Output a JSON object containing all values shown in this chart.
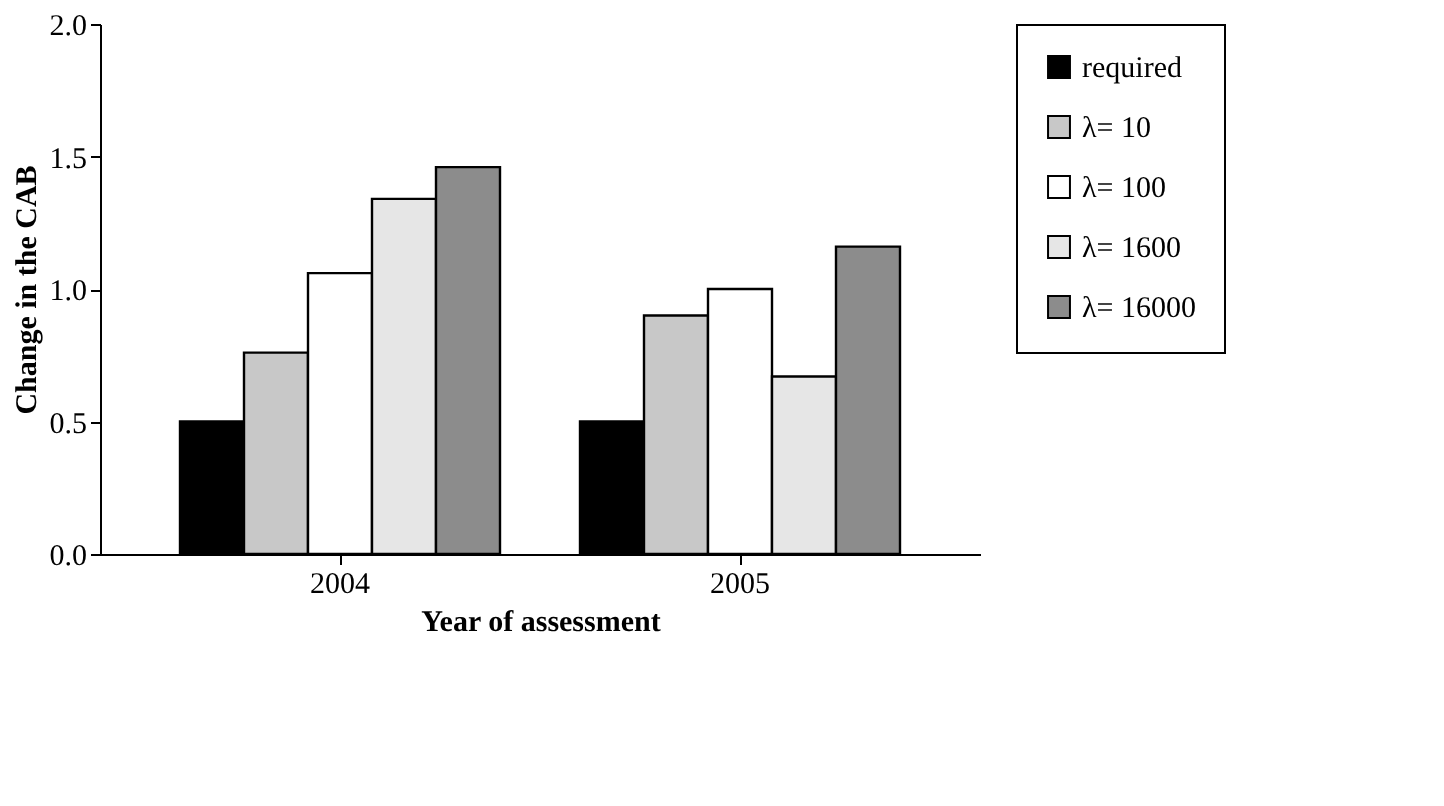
{
  "chart_data": {
    "type": "bar",
    "xlabel": "Year of assessment",
    "ylabel": "Change in the CAB",
    "categories": [
      "2004",
      "2005"
    ],
    "series": [
      {
        "name": "required",
        "color": "#000000",
        "values": [
          0.5,
          0.5
        ]
      },
      {
        "name": "λ= 10",
        "color": "#c8c8c8",
        "values": [
          0.76,
          0.9
        ]
      },
      {
        "name": "λ= 100",
        "color": "#ffffff",
        "values": [
          1.06,
          1.0
        ]
      },
      {
        "name": "λ= 1600",
        "color": "#e6e6e6",
        "values": [
          1.34,
          0.67
        ]
      },
      {
        "name": "λ= 16000",
        "color": "#8c8c8c",
        "values": [
          1.46,
          1.16
        ]
      }
    ],
    "ylim": [
      0,
      2.0
    ],
    "yticks": [
      {
        "value": 0,
        "label": "0.0"
      },
      {
        "value": 0.5,
        "label": "0.5"
      },
      {
        "value": 1.0,
        "label": "1.0"
      },
      {
        "value": 1.5,
        "label": "1.5"
      },
      {
        "value": 2.0,
        "label": "2.0"
      }
    ],
    "grid": false,
    "legend": "right"
  }
}
